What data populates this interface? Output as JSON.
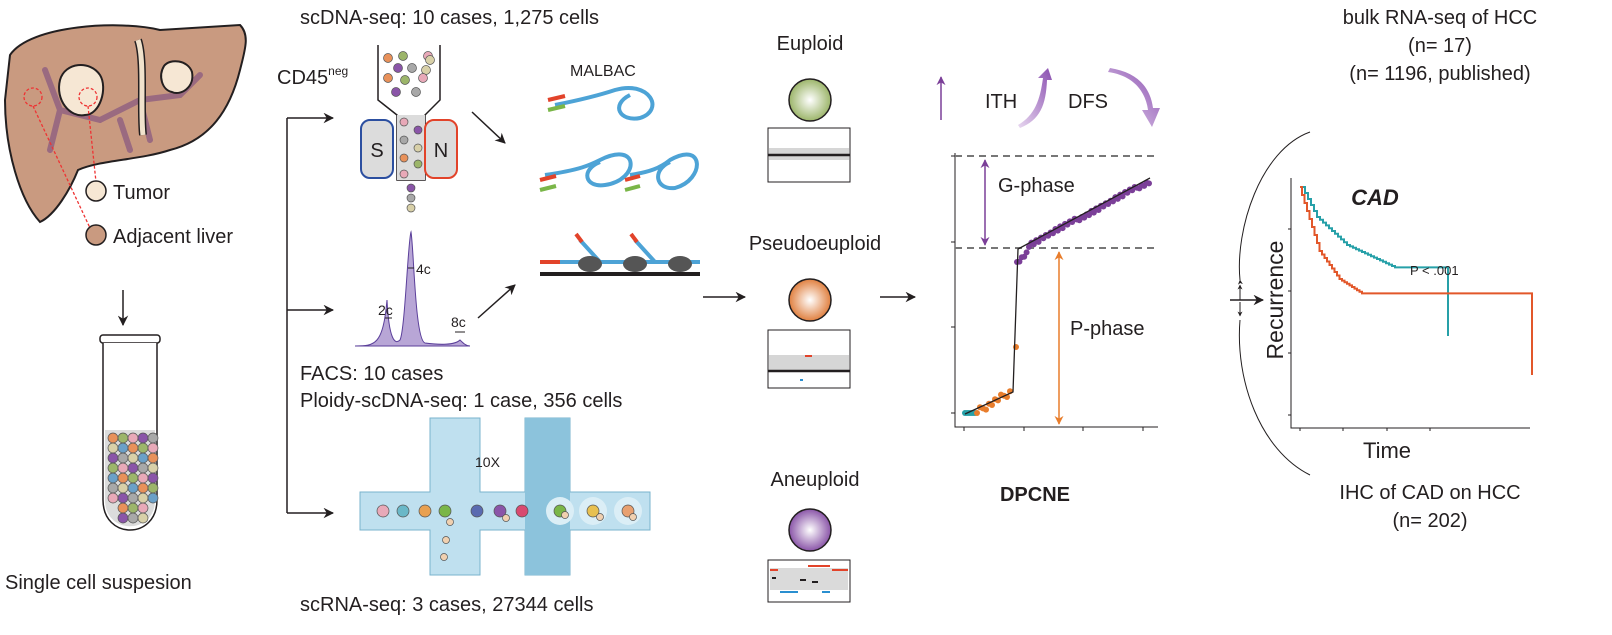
{
  "sample": {
    "tumor_label": "Tumor",
    "adjacent_label": "Adjacent liver",
    "suspension_label": "Single cell suspesion"
  },
  "scdna": {
    "title": "scDNA-seq: 10 cases, 1,275 cells",
    "cd45": "CD45",
    "cd45_sup": "neg",
    "s_label": "S",
    "n_label": "N"
  },
  "facs": {
    "peak_2c": "2c",
    "peak_4c": "4c",
    "peak_8c": "8c",
    "line1": "FACS: 10 cases",
    "line2": "Ploidy-scDNA-seq: 1 case, 356 cells"
  },
  "scrna": {
    "chip_label": "10X",
    "title": "scRNA-seq: 3 cases, 27344 cells"
  },
  "malbac": {
    "label": "MALBAC"
  },
  "ploidy": {
    "euploid": "Euploid",
    "pseudoeuploid": "Pseudoeuploid",
    "aneuploid": "Aneuploid"
  },
  "dpcne": {
    "ith": "ITH",
    "dfs": "DFS",
    "g_phase": "G-phase",
    "p_phase": "P-phase",
    "title": "DPCNE"
  },
  "survival": {
    "bulk_title": "bulk RNA-seq of HCC",
    "bulk_n": "(n= 17)",
    "bulk_published": "(n= 1196, published)",
    "gene": "CAD",
    "p_value": "P < .001",
    "ylabel": "Recurrence",
    "xlabel": "Time",
    "ihc_title": "IHC of CAD on HCC",
    "ihc_n": "(n= 202)"
  },
  "colors": {
    "liver": "#c99a80",
    "vessel": "#9a6a80",
    "purple": "#7b3f98",
    "orange": "#e87d2c",
    "teal": "#26a0a8",
    "red_curve": "#e2572a"
  }
}
